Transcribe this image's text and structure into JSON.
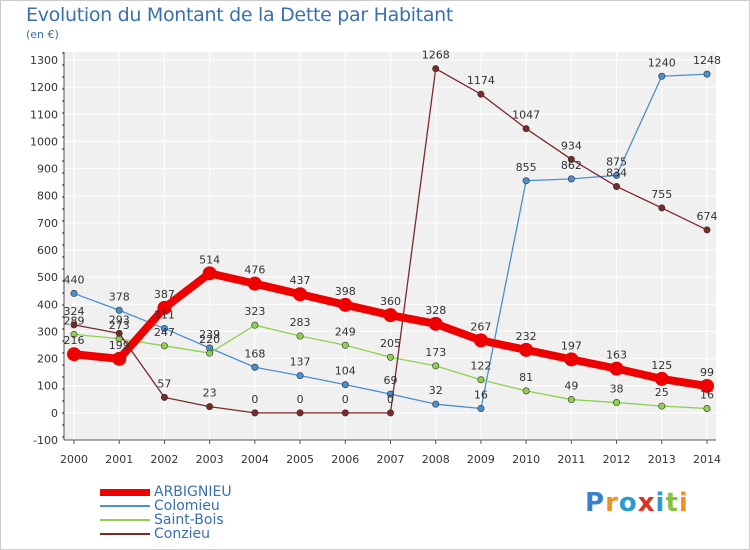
{
  "title": "Evolution du Montant de la Dette par Habitant",
  "subtitle": "(en €)",
  "logo": {
    "letters": [
      "P",
      "r",
      "o",
      "x",
      "i",
      "t",
      "i"
    ],
    "colors": [
      "#3a7fd0",
      "#f09020",
      "#2a9ad0",
      "#e03020",
      "#2a9ad0",
      "#8cc040",
      "#f09020"
    ]
  },
  "chart_data": {
    "type": "line",
    "x": [
      "2000",
      "2001",
      "2002",
      "2003",
      "2004",
      "2005",
      "2006",
      "2007",
      "2008",
      "2009",
      "2010",
      "2011",
      "2012",
      "2013",
      "2014"
    ],
    "ylim": [
      -100,
      1300
    ],
    "yticks": [
      "-100",
      "0",
      "100",
      "200",
      "300",
      "400",
      "500",
      "600",
      "700",
      "800",
      "900",
      "1000",
      "1100",
      "1200",
      "1300"
    ],
    "grid": true,
    "legend_position": "bottom-left",
    "series": [
      {
        "name": "ARBIGNIEU",
        "color": "#ee0000",
        "values": [
          216,
          199,
          387,
          514,
          476,
          437,
          398,
          360,
          328,
          267,
          232,
          197,
          163,
          125,
          99
        ],
        "labels": [
          "216",
          "199",
          "387",
          "514",
          "476",
          "437",
          "398",
          "360",
          "328",
          "267",
          "232",
          "197",
          "163",
          "125",
          "99"
        ]
      },
      {
        "name": "Colomieu",
        "color": "#4a8fd0",
        "values": [
          440,
          378,
          311,
          239,
          168,
          137,
          104,
          69,
          32,
          16,
          855,
          862,
          875,
          1240,
          1248
        ],
        "labels": [
          "440",
          "378",
          "311",
          "239",
          "168",
          "137",
          "104",
          "69",
          "32",
          "16",
          "855",
          "862",
          "875",
          "1240",
          "1248"
        ]
      },
      {
        "name": "Saint-Bois",
        "color": "#8fd050",
        "values": [
          289,
          273,
          247,
          220,
          323,
          283,
          249,
          205,
          173,
          122,
          81,
          49,
          38,
          25,
          16
        ],
        "labels": [
          "289",
          "273",
          "247",
          "220",
          "323",
          "283",
          "249",
          "205",
          "173",
          "122",
          "81",
          "49",
          "38",
          "25",
          "16"
        ]
      },
      {
        "name": "Conzieu",
        "color": "#7a2a2a",
        "values": [
          324,
          293,
          57,
          23,
          0,
          0,
          0,
          0,
          1268,
          1174,
          1047,
          934,
          834,
          755,
          674
        ],
        "labels": [
          "324",
          "293",
          "57",
          "23",
          "0",
          "0",
          "0",
          "0",
          "1268",
          "1174",
          "1047",
          "934",
          "834",
          "755",
          "674"
        ]
      }
    ]
  }
}
